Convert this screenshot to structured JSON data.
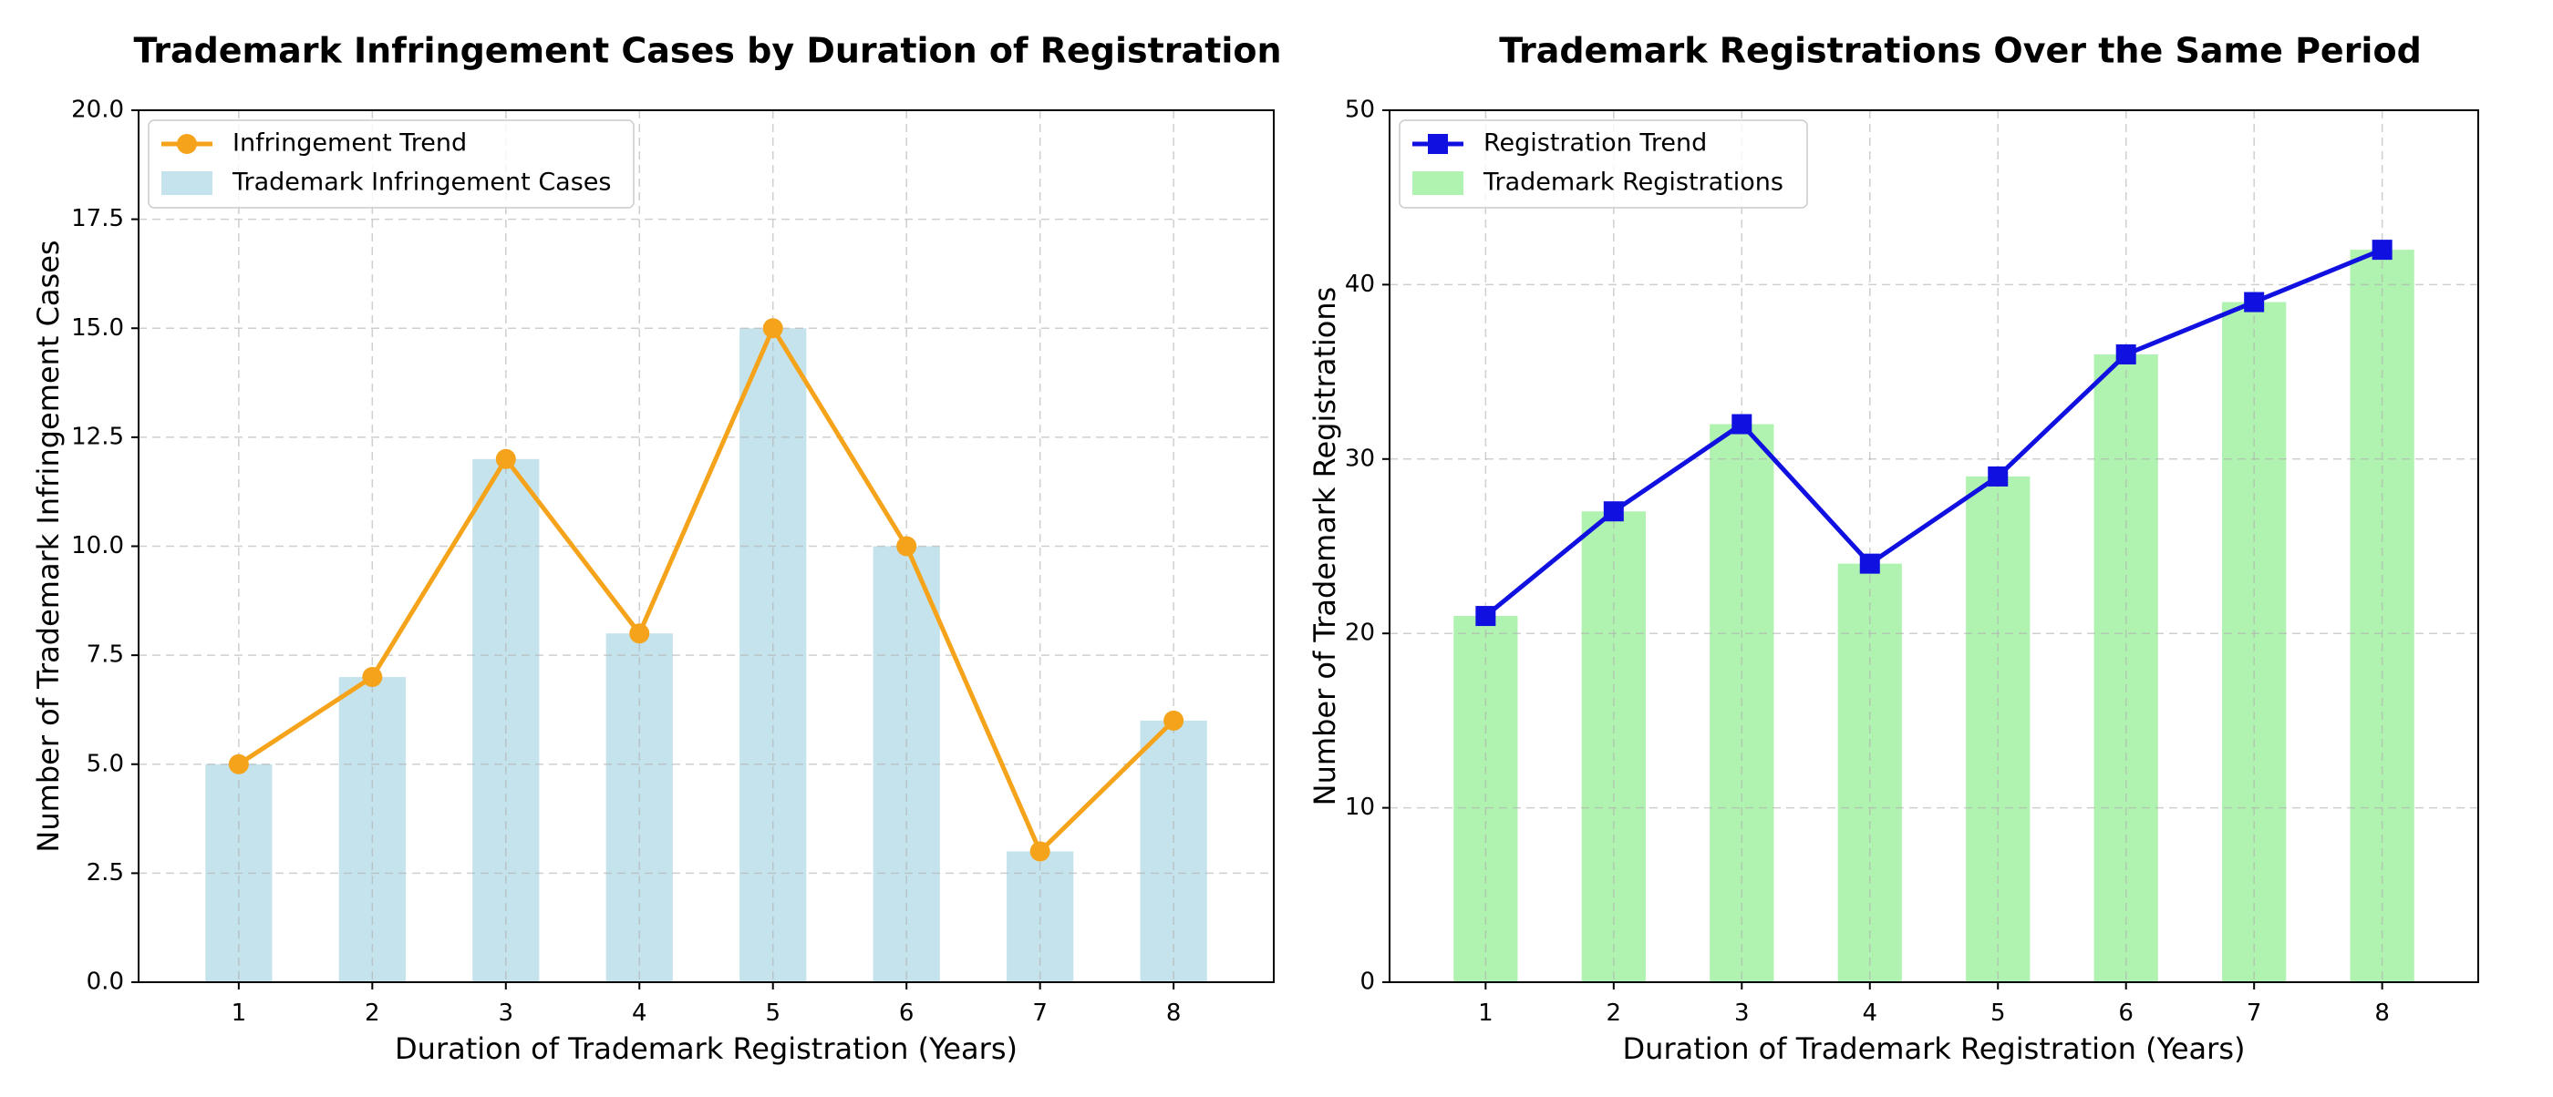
{
  "chart_data": [
    {
      "type": "bar",
      "title": "Trademark Infringement Cases by Duration of Registration",
      "xlabel": "Duration of Trademark Registration (Years)",
      "ylabel": "Number of Trademark Infringement Cases",
      "categories": [
        "1",
        "2",
        "3",
        "4",
        "5",
        "6",
        "7",
        "8"
      ],
      "ylim": [
        0,
        20
      ],
      "yticks": [
        "0.0",
        "2.5",
        "5.0",
        "7.5",
        "10.0",
        "12.5",
        "15.0",
        "17.5",
        "20.0"
      ],
      "ytick_values": [
        0,
        2.5,
        5,
        7.5,
        10,
        12.5,
        15,
        17.5,
        20
      ],
      "grid": true,
      "legend_position": "top-left",
      "series": [
        {
          "name": "Infringement Trend",
          "kind": "line",
          "marker": "circle",
          "color": "#f5a31a",
          "values": [
            5,
            7,
            12,
            8,
            15,
            10,
            3,
            6
          ]
        },
        {
          "name": "Trademark Infringement Cases",
          "kind": "bar",
          "color": "#c5e3ec",
          "values": [
            5,
            7,
            12,
            8,
            15,
            10,
            3,
            6
          ]
        }
      ]
    },
    {
      "type": "bar",
      "title": "Trademark Registrations Over the Same Period",
      "xlabel": "Duration of Trademark Registration (Years)",
      "ylabel": "Number of Trademark Registrations",
      "categories": [
        "1",
        "2",
        "3",
        "4",
        "5",
        "6",
        "7",
        "8"
      ],
      "ylim": [
        0,
        50
      ],
      "yticks": [
        "0",
        "10",
        "20",
        "30",
        "40",
        "50"
      ],
      "ytick_values": [
        0,
        10,
        20,
        30,
        40,
        50
      ],
      "grid": true,
      "legend_position": "top-left",
      "series": [
        {
          "name": "Registration Trend",
          "kind": "line",
          "marker": "square",
          "color": "#1010e0",
          "values": [
            21,
            27,
            32,
            24,
            29,
            36,
            39,
            42
          ]
        },
        {
          "name": "Trademark Registrations",
          "kind": "bar",
          "color": "#b0f2b0",
          "values": [
            21,
            27,
            32,
            24,
            29,
            36,
            39,
            42
          ]
        }
      ]
    }
  ]
}
